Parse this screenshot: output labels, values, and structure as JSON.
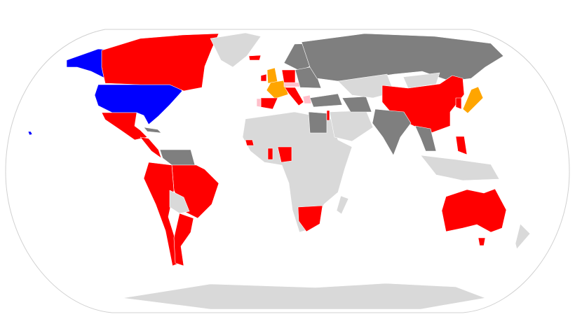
{
  "map": {
    "colors": {
      "ocean": "#ffffff",
      "outline": "#d0d0d0",
      "no_data": "#d9d9d9",
      "dark": "#7f7f7f",
      "red": "#ff0000",
      "blue": "#0000ff",
      "orange": "#ffa500",
      "pink": "#ffc0cb"
    },
    "regions": [
      {
        "id": "alaska",
        "category": "blue"
      },
      {
        "id": "united-states",
        "category": "blue"
      },
      {
        "id": "hawaii",
        "category": "blue"
      },
      {
        "id": "canada",
        "category": "red"
      },
      {
        "id": "greenland",
        "category": "no_data"
      },
      {
        "id": "mexico",
        "category": "red"
      },
      {
        "id": "central-america",
        "category": "red"
      },
      {
        "id": "cuba",
        "category": "dark"
      },
      {
        "id": "venezuela-guyana",
        "category": "dark"
      },
      {
        "id": "brazil",
        "category": "red"
      },
      {
        "id": "andean-chile",
        "category": "red"
      },
      {
        "id": "bolivia-paraguay",
        "category": "no_data"
      },
      {
        "id": "argentina",
        "category": "red"
      },
      {
        "id": "africa",
        "category": "no_data"
      },
      {
        "id": "egypt",
        "category": "dark"
      },
      {
        "id": "nigeria",
        "category": "red"
      },
      {
        "id": "ghana",
        "category": "red"
      },
      {
        "id": "senegal",
        "category": "red"
      },
      {
        "id": "south-africa",
        "category": "red"
      },
      {
        "id": "madagascar",
        "category": "no_data"
      },
      {
        "id": "iceland",
        "category": "red"
      },
      {
        "id": "united-kingdom",
        "category": "orange"
      },
      {
        "id": "ireland",
        "category": "red"
      },
      {
        "id": "france",
        "category": "orange"
      },
      {
        "id": "spain",
        "category": "red"
      },
      {
        "id": "portugal",
        "category": "pink"
      },
      {
        "id": "germany",
        "category": "red"
      },
      {
        "id": "italy",
        "category": "red"
      },
      {
        "id": "switzerland-austria",
        "category": "pink"
      },
      {
        "id": "greece",
        "category": "pink"
      },
      {
        "id": "israel",
        "category": "red"
      },
      {
        "id": "scandinavia",
        "category": "dark"
      },
      {
        "id": "eastern-europe",
        "category": "dark"
      },
      {
        "id": "russia",
        "category": "dark"
      },
      {
        "id": "turkey",
        "category": "dark"
      },
      {
        "id": "middle-east",
        "category": "no_data"
      },
      {
        "id": "iran",
        "category": "dark"
      },
      {
        "id": "central-asia",
        "category": "no_data"
      },
      {
        "id": "mongolia",
        "category": "no_data"
      },
      {
        "id": "china",
        "category": "red"
      },
      {
        "id": "india",
        "category": "dark"
      },
      {
        "id": "southeast-asia",
        "category": "dark"
      },
      {
        "id": "japan",
        "category": "orange"
      },
      {
        "id": "south-korea",
        "category": "red"
      },
      {
        "id": "philippines",
        "category": "red"
      },
      {
        "id": "indonesia",
        "category": "no_data"
      },
      {
        "id": "australia",
        "category": "red"
      },
      {
        "id": "tasmania",
        "category": "red"
      },
      {
        "id": "new-zealand",
        "category": "no_data"
      },
      {
        "id": "antarctica",
        "category": "no_data"
      }
    ]
  }
}
